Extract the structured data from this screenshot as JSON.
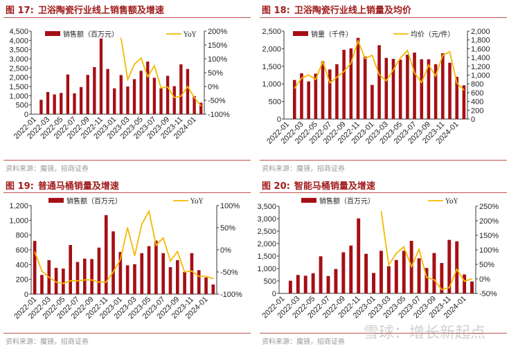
{
  "colors": {
    "bar": "#a50f15",
    "line": "#f5b800",
    "title": "#a01c1c",
    "rule": "#c0504d"
  },
  "watermark": "雪球：增长新起点",
  "chart_data": [
    {
      "type": "bar+line",
      "fig": "图 17:",
      "title": "卫浴陶瓷行业线上销售额及增速",
      "source": "资料来源：魔镜，招商证券",
      "months": [
        "2022-01",
        "2022-02",
        "2022-03",
        "2022-04",
        "2022-05",
        "2022-06",
        "2022-07",
        "2022-08",
        "2022-09",
        "2022-10",
        "2022-11",
        "2022-12",
        "2023-01",
        "2023-02",
        "2023-03",
        "2023-04",
        "2023-05",
        "2023-06",
        "2023-07",
        "2023-08",
        "2023-09",
        "2023-10",
        "2023-11",
        "2023-12",
        "2024-01",
        "2024-02"
      ],
      "xticks": [
        "2022-01",
        "2022-03",
        "2022-05",
        "2022-07",
        "2022-09",
        "2022-11",
        "2023-01",
        "2023-03",
        "2023-05",
        "2023-07",
        "2023-09",
        "2023-11",
        "2024-01"
      ],
      "bar_name": "销售额（百万元）",
      "line_name": "YoY",
      "bars": [
        null,
        780,
        1200,
        1070,
        1150,
        2150,
        1130,
        1470,
        2130,
        2550,
        4100,
        2450,
        1400,
        2120,
        1500,
        1900,
        2350,
        2850,
        1970,
        1400,
        2080,
        1520,
        2700,
        2450,
        980,
        620
      ],
      "line": [
        null,
        null,
        null,
        null,
        null,
        null,
        null,
        null,
        null,
        null,
        null,
        null,
        null,
        175,
        25,
        80,
        103,
        35,
        75,
        -5,
        -2,
        -40,
        -35,
        0,
        -40,
        -70
      ],
      "ylim": [
        0,
        4500
      ],
      "yticks": [
        "0",
        "500",
        "1,000",
        "1,500",
        "2,000",
        "2,500",
        "3,000",
        "3,500",
        "4,000",
        "4,500"
      ],
      "y2lim": [
        -100,
        200
      ],
      "y2ticks": [
        "-100%",
        "-50%",
        "0%",
        "50%",
        "100%",
        "150%",
        "200%"
      ]
    },
    {
      "type": "bar+line",
      "fig": "图 18:",
      "title": "卫浴陶瓷行业线上销量及均价",
      "source": "资料来源：魔镜，招商证券",
      "months": [
        "2022-01",
        "2022-02",
        "2022-03",
        "2022-04",
        "2022-05",
        "2022-06",
        "2022-07",
        "2022-08",
        "2022-09",
        "2022-10",
        "2022-11",
        "2022-12",
        "2023-01",
        "2023-02",
        "2023-03",
        "2023-04",
        "2023-05",
        "2023-06",
        "2023-07",
        "2023-08",
        "2023-09",
        "2023-10",
        "2023-11",
        "2023-12",
        "2024-01",
        "2024-02"
      ],
      "xticks": [
        "2022-01",
        "2022-03",
        "2022-05",
        "2022-07",
        "2022-09",
        "2022-11",
        "2023-01",
        "2023-03",
        "2023-05",
        "2023-07",
        "2023-09",
        "2023-11",
        "2024-01"
      ],
      "bar_name": "销量（千件）",
      "line_name": "均价（元/件）",
      "bars": [
        null,
        1110,
        1300,
        1070,
        1290,
        1640,
        1410,
        1560,
        1970,
        2010,
        2310,
        1780,
        970,
        2100,
        1740,
        1710,
        1690,
        1830,
        1890,
        1700,
        1700,
        1560,
        1870,
        1600,
        1200,
        960
      ],
      "line": [
        null,
        700,
        930,
        1000,
        900,
        1310,
        820,
        950,
        1080,
        1270,
        1780,
        1380,
        1450,
        1010,
        870,
        1120,
        1390,
        1560,
        1050,
        830,
        1230,
        980,
        1450,
        1530,
        820,
        660
      ],
      "ylim": [
        0,
        2500
      ],
      "yticks": [
        "0",
        "500",
        "1,000",
        "1,500",
        "2,000",
        "2,500"
      ],
      "y2lim": [
        0,
        2000
      ],
      "y2ticks": [
        "0",
        "200",
        "400",
        "600",
        "800",
        "1,000",
        "1,200",
        "1,400",
        "1,600",
        "1,800",
        "2,000"
      ]
    },
    {
      "type": "bar+line",
      "fig": "图 19:",
      "title": "普通马桶销量及增速",
      "source": "资料来源：魔镜，招商证券",
      "months": [
        "2022-01",
        "2022-02",
        "2022-03",
        "2022-04",
        "2022-05",
        "2022-06",
        "2022-07",
        "2022-08",
        "2022-09",
        "2022-10",
        "2022-11",
        "2022-12",
        "2023-01",
        "2023-02",
        "2023-03",
        "2023-04",
        "2023-05",
        "2023-06",
        "2023-07",
        "2023-08",
        "2023-09",
        "2023-10",
        "2023-11",
        "2023-12",
        "2024-01",
        "2024-02"
      ],
      "xticks": [
        "2022-01",
        "2022-03",
        "2022-05",
        "2022-07",
        "2022-09",
        "2022-11",
        "2023-01",
        "2023-03",
        "2023-05",
        "2023-07",
        "2023-09",
        "2023-11",
        "2024-01"
      ],
      "bar_name": "销售额（百万元）",
      "line_name": "YoY",
      "bars": [
        720,
        260,
        460,
        355,
        345,
        665,
        435,
        480,
        475,
        630,
        1070,
        850,
        570,
        390,
        405,
        555,
        650,
        725,
        555,
        365,
        460,
        300,
        555,
        325,
        225,
        130
      ],
      "line": [
        -5,
        -48,
        -62,
        -73,
        -76,
        -70,
        -70,
        -68,
        -68,
        -73,
        -73,
        -50,
        -22,
        50,
        -13,
        58,
        87,
        10,
        27,
        -25,
        -4,
        -50,
        -48,
        -60,
        -60,
        -65
      ],
      "ylim": [
        0,
        1200
      ],
      "yticks": [
        "0",
        "200",
        "400",
        "600",
        "800",
        "1,000",
        "1,200"
      ],
      "y2lim": [
        -100,
        100
      ],
      "y2ticks": [
        "-100%",
        "-50%",
        "0%",
        "50%",
        "100%"
      ]
    },
    {
      "type": "bar+line",
      "fig": "图 20:",
      "title": "智能马桶销量及增速",
      "source": "资料来源：魔镜，招商证券",
      "months": [
        "2022-01",
        "2022-02",
        "2022-03",
        "2022-04",
        "2022-05",
        "2022-06",
        "2022-07",
        "2022-08",
        "2022-09",
        "2022-10",
        "2022-11",
        "2022-12",
        "2023-01",
        "2023-02",
        "2023-03",
        "2023-04",
        "2023-05",
        "2023-06",
        "2023-07",
        "2023-08",
        "2023-09",
        "2023-10",
        "2023-11",
        "2023-12",
        "2024-01",
        "2024-02"
      ],
      "xticks": [
        "2022-01",
        "2022-03",
        "2022-05",
        "2022-07",
        "2022-09",
        "2022-11",
        "2023-01",
        "2023-03",
        "2023-05",
        "2023-07",
        "2023-09",
        "2023-11",
        "2024-01"
      ],
      "bar_name": "销售额（百万元）",
      "line_name": "YoY",
      "bars": [
        null,
        510,
        740,
        710,
        810,
        1490,
        700,
        980,
        1650,
        1920,
        3010,
        1590,
        820,
        1710,
        1090,
        1340,
        1710,
        2110,
        1410,
        1020,
        1620,
        1220,
        2150,
        2090,
        760,
        480
      ],
      "line": [
        null,
        null,
        null,
        null,
        null,
        null,
        null,
        null,
        null,
        null,
        null,
        null,
        null,
        232,
        48,
        88,
        110,
        42,
        102,
        5,
        -3,
        -37,
        -30,
        33,
        -8,
        0
      ],
      "ylim": [
        0,
        3500
      ],
      "yticks": [
        "0",
        "500",
        "1,000",
        "1,500",
        "2,000",
        "2,500",
        "3,000",
        "3,500"
      ],
      "y2lim": [
        -50,
        250
      ],
      "y2ticks": [
        "-50%",
        "0%",
        "50%",
        "100%",
        "150%",
        "200%",
        "250%"
      ]
    }
  ]
}
